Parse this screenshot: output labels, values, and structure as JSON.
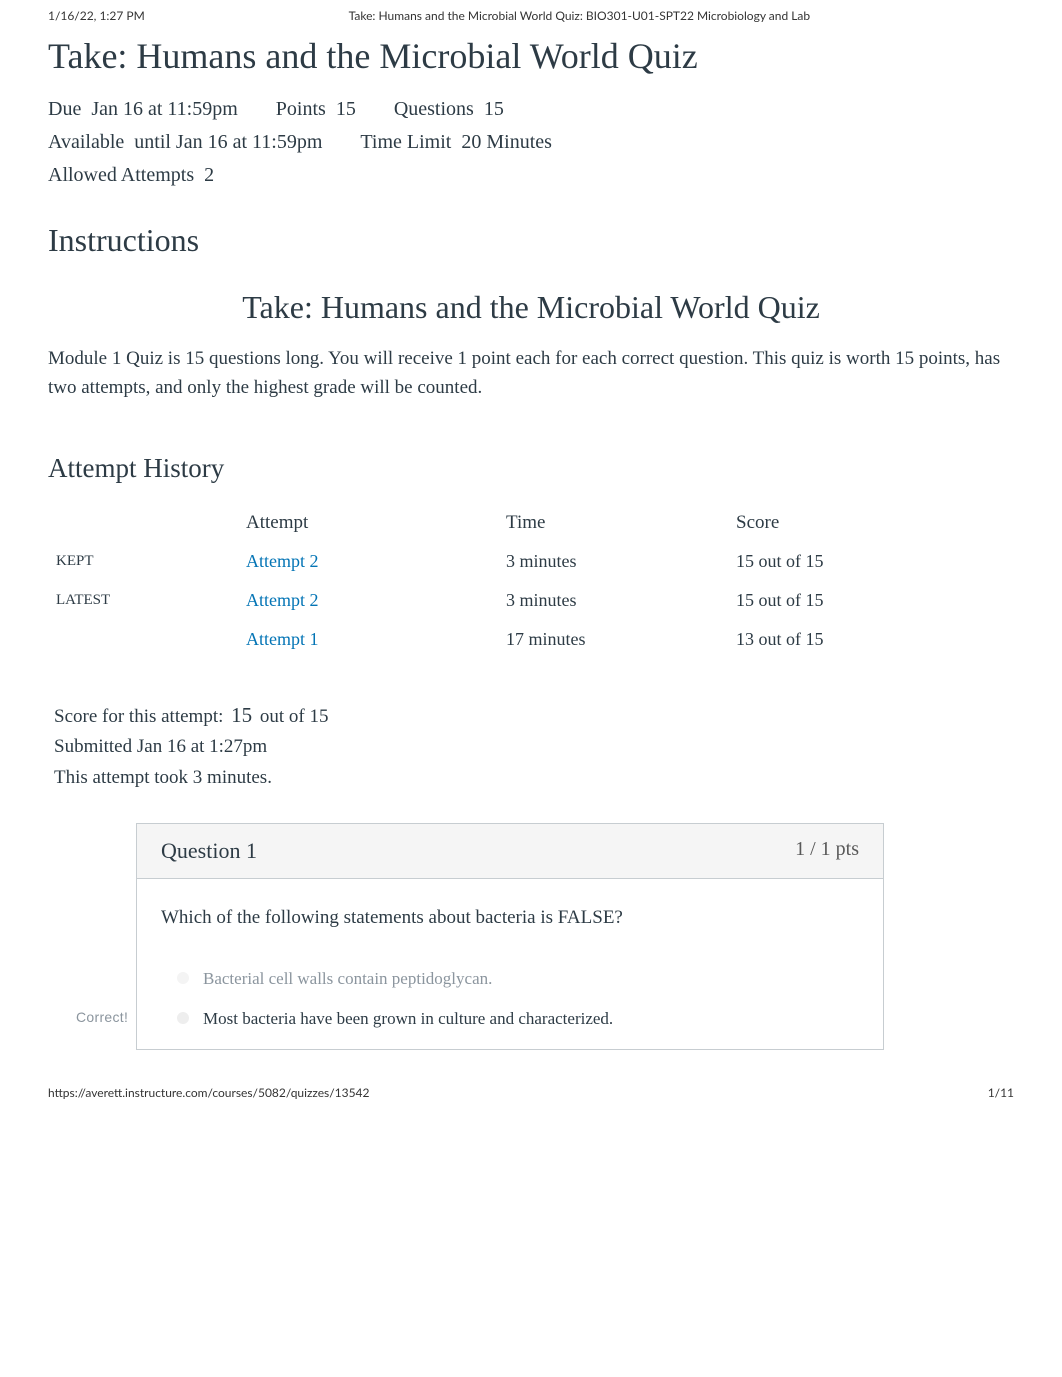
{
  "page_header": {
    "datetime": "1/16/22, 1:27 PM",
    "doc_title": "Take: Humans and the Microbial World Quiz: BIO301-U01-SPT22 Microbiology and Lab"
  },
  "quiz": {
    "title": "Take: Humans and the Microbial World Quiz",
    "meta": {
      "due_label": "Due",
      "due_value": "Jan 16 at 11:59pm",
      "points_label": "Points",
      "points_value": "15",
      "questions_label": "Questions",
      "questions_value": "15",
      "available_label": "Available",
      "available_value": "until Jan 16 at 11:59pm",
      "time_limit_label": "Time Limit",
      "time_limit_value": "20 Minutes",
      "attempts_label": "Allowed Attempts",
      "attempts_value": "2"
    }
  },
  "instructions": {
    "heading": "Instructions",
    "subheading": "Take: Humans and the Microbial World Quiz",
    "body": "Module 1 Quiz is 15 questions long. You will receive 1 point each for each correct question. This quiz is worth 15 points, has two attempts, and only the highest grade will be counted."
  },
  "attempt_history": {
    "heading": "Attempt History",
    "columns": {
      "status": "",
      "attempt": "Attempt",
      "time": "Time",
      "score": "Score"
    },
    "rows": [
      {
        "status": "KEPT",
        "attempt": "Attempt 2",
        "time": "3 minutes",
        "score": "15 out of 15"
      },
      {
        "status": "LATEST",
        "attempt": "Attempt 2",
        "time": "3 minutes",
        "score": "15 out of 15"
      },
      {
        "status": "",
        "attempt": "Attempt 1",
        "time": "17 minutes",
        "score": "13 out of 15"
      }
    ]
  },
  "score": {
    "label_prefix": "Score for this attempt:",
    "value": "15",
    "label_suffix": "out of 15",
    "submitted": "Submitted Jan 16 at 1:27pm",
    "duration": "This attempt took 3 minutes."
  },
  "question": {
    "label": "Question 1",
    "points": "1 / 1 pts",
    "text": "Which of the following statements about bacteria is FALSE?",
    "answers": [
      {
        "text": "Bacterial cell walls contain peptidoglycan.",
        "correct_badge": ""
      },
      {
        "text": "Most bacteria have been grown in culture and characterized.",
        "correct_badge": "Correct!"
      }
    ]
  },
  "footer": {
    "url": "https://averett.instructure.com/courses/5082/quizzes/13542",
    "page": "1/11"
  },
  "colors": {
    "link": "#0374b5",
    "text_primary": "#2d3b45",
    "text_muted": "#8b959e",
    "border": "#c7cdd1",
    "header_bg": "#f5f5f5"
  }
}
